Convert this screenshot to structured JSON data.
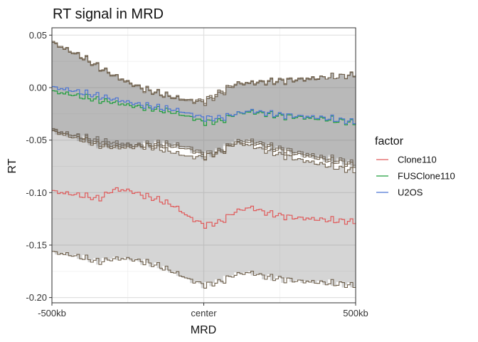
{
  "chart_data": {
    "type": "line",
    "title": "RT signal in MRD",
    "xlabel": "MRD",
    "ylabel": "RT",
    "x_ticks": [
      {
        "value": -500,
        "label": "-500kb"
      },
      {
        "value": 0,
        "label": "center"
      },
      {
        "value": 500,
        "label": "500kb"
      }
    ],
    "y_ticks": [
      {
        "value": 0.05,
        "label": "0.05"
      },
      {
        "value": 0.0,
        "label": "0.00"
      },
      {
        "value": -0.05,
        "label": "-0.05"
      },
      {
        "value": -0.1,
        "label": "-0.10"
      },
      {
        "value": -0.15,
        "label": "-0.15"
      },
      {
        "value": -0.2,
        "label": "-0.20"
      }
    ],
    "xlim": [
      -500,
      500
    ],
    "ylim": [
      -0.205,
      0.057
    ],
    "grid": true,
    "legend": {
      "title": "factor",
      "position": "right"
    },
    "series": [
      {
        "name": "Clone110",
        "color": "#e05a5a",
        "x": [
          -500,
          -450,
          -400,
          -350,
          -300,
          -250,
          -200,
          -150,
          -100,
          -50,
          0,
          50,
          100,
          150,
          200,
          250,
          300,
          350,
          400,
          450,
          500
        ],
        "values": [
          -0.099,
          -0.101,
          -0.103,
          -0.106,
          -0.097,
          -0.098,
          -0.103,
          -0.107,
          -0.113,
          -0.124,
          -0.131,
          -0.128,
          -0.118,
          -0.114,
          -0.119,
          -0.122,
          -0.124,
          -0.125,
          -0.126,
          -0.127,
          -0.128
        ],
        "upper": [
          -0.041,
          -0.044,
          -0.047,
          -0.05,
          -0.052,
          -0.054,
          -0.056,
          -0.058,
          -0.062,
          -0.066,
          -0.066,
          -0.06,
          -0.053,
          -0.055,
          -0.06,
          -0.064,
          -0.068,
          -0.071,
          -0.074,
          -0.077,
          -0.08
        ],
        "lower": [
          -0.157,
          -0.159,
          -0.162,
          -0.166,
          -0.163,
          -0.163,
          -0.166,
          -0.17,
          -0.176,
          -0.183,
          -0.188,
          -0.185,
          -0.178,
          -0.176,
          -0.18,
          -0.182,
          -0.184,
          -0.185,
          -0.186,
          -0.187,
          -0.189
        ]
      },
      {
        "name": "FUSClone110",
        "color": "#1e9e3c",
        "x": [
          -500,
          -450,
          -400,
          -350,
          -300,
          -250,
          -200,
          -150,
          -100,
          -50,
          0,
          50,
          100,
          150,
          200,
          250,
          300,
          350,
          400,
          450,
          500
        ],
        "values": [
          -0.004,
          -0.006,
          -0.009,
          -0.012,
          -0.014,
          -0.017,
          -0.019,
          -0.021,
          -0.024,
          -0.028,
          -0.033,
          -0.032,
          -0.025,
          -0.023,
          -0.025,
          -0.027,
          -0.028,
          -0.029,
          -0.03,
          -0.032,
          -0.034
        ],
        "upper": [
          0.043,
          0.036,
          0.029,
          0.02,
          0.012,
          0.005,
          -0.001,
          -0.005,
          -0.009,
          -0.012,
          -0.012,
          -0.004,
          0.004,
          0.005,
          0.006,
          0.007,
          0.008,
          0.009,
          0.01,
          0.011,
          0.012
        ],
        "lower": [
          -0.04,
          -0.044,
          -0.048,
          -0.053,
          -0.055,
          -0.055,
          -0.054,
          -0.053,
          -0.054,
          -0.057,
          -0.063,
          -0.06,
          -0.051,
          -0.05,
          -0.054,
          -0.058,
          -0.061,
          -0.064,
          -0.067,
          -0.069,
          -0.073
        ]
      },
      {
        "name": "U2OS",
        "color": "#4a74d4",
        "x": [
          -500,
          -450,
          -400,
          -350,
          -300,
          -250,
          -200,
          -150,
          -100,
          -50,
          0,
          50,
          100,
          150,
          200,
          250,
          300,
          350,
          400,
          450,
          500
        ],
        "values": [
          0.0,
          -0.002,
          -0.005,
          -0.008,
          -0.011,
          -0.014,
          -0.017,
          -0.019,
          -0.021,
          -0.025,
          -0.029,
          -0.029,
          -0.025,
          -0.022,
          -0.024,
          -0.026,
          -0.027,
          -0.028,
          -0.029,
          -0.031,
          -0.033
        ],
        "upper": [
          0.042,
          0.035,
          0.028,
          0.019,
          0.011,
          0.004,
          -0.002,
          -0.006,
          -0.01,
          -0.013,
          -0.014,
          -0.006,
          0.003,
          0.004,
          0.005,
          0.006,
          0.007,
          0.008,
          0.01,
          0.011,
          0.013
        ],
        "lower": [
          -0.042,
          -0.046,
          -0.05,
          -0.055,
          -0.057,
          -0.057,
          -0.056,
          -0.055,
          -0.056,
          -0.059,
          -0.065,
          -0.062,
          -0.053,
          -0.052,
          -0.056,
          -0.06,
          -0.063,
          -0.066,
          -0.069,
          -0.071,
          -0.075
        ]
      }
    ]
  }
}
